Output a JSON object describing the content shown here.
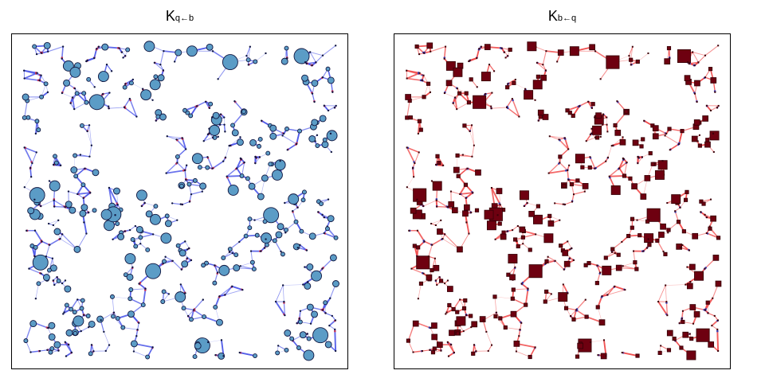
{
  "panels": [
    {
      "title_main": "K",
      "title_sub": "q←b",
      "edge_color": "#4a55e8",
      "node_fill": "#5b9cc6",
      "node_stroke": "#101640",
      "node_shape": "circle",
      "tip_color": "#c8325a"
    },
    {
      "title_main": "K",
      "title_sub": "b←q",
      "edge_color": "#f04848",
      "node_fill": "#6e0010",
      "node_stroke": "#3a0008",
      "node_shape": "square",
      "tip_color": "#3a3fb8"
    }
  ]
}
